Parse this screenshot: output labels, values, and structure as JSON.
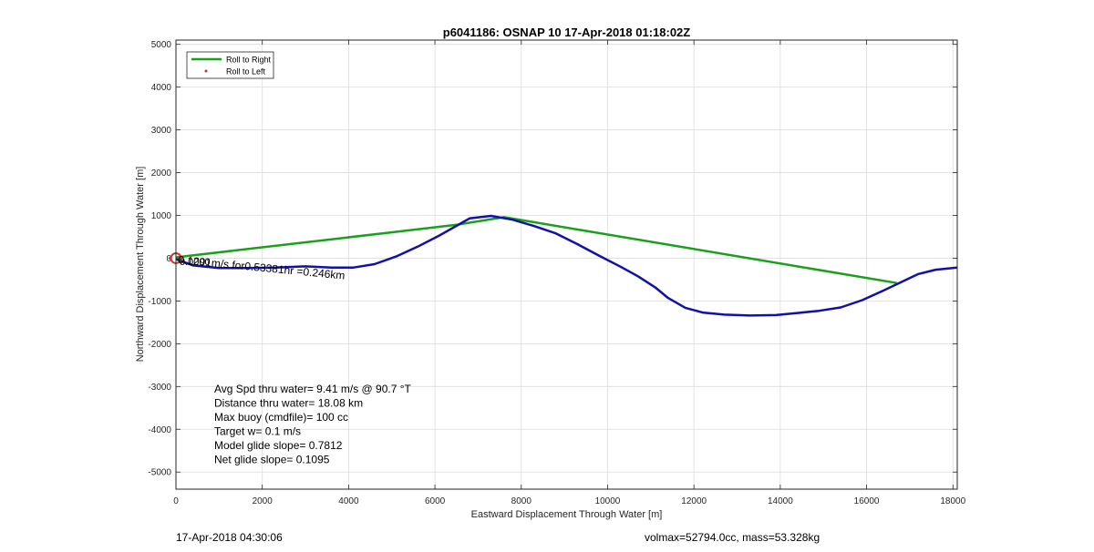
{
  "chart_data": {
    "type": "line",
    "title": "p6041186: OSNAP 10 17-Apr-2018 01:18:02Z",
    "xlabel": "Eastward Displacement Through Water [m]",
    "ylabel": "Northward Displacement Through Water [m]",
    "xlim": [
      0,
      18100
    ],
    "ylim": [
      -5400,
      5100
    ],
    "x_ticks": [
      0,
      2000,
      4000,
      6000,
      8000,
      10000,
      12000,
      14000,
      16000,
      18000
    ],
    "y_ticks": [
      5000,
      4000,
      3000,
      2000,
      1000,
      0,
      -1000,
      -2000,
      -3000,
      -4000,
      -5000
    ],
    "grid": true,
    "legend_position": "top-left",
    "legend": [
      {
        "label": "Roll to Right",
        "color": "#1aa01a",
        "style": "line"
      },
      {
        "label": "Roll to Left",
        "color": "#c0392b",
        "style": "dot"
      }
    ],
    "series": [
      {
        "name": "Roll to Right",
        "color": "#1aa01a",
        "points": [
          [
            0,
            20
          ],
          [
            6500,
            780
          ],
          [
            7600,
            960
          ],
          [
            16700,
            -580
          ]
        ]
      },
      {
        "color": "#1010aa",
        "points": [
          [
            0,
            -20
          ],
          [
            400,
            -170
          ],
          [
            1000,
            -230
          ],
          [
            1600,
            -230
          ],
          [
            2300,
            -220
          ],
          [
            3000,
            -190
          ],
          [
            3600,
            -220
          ],
          [
            4100,
            -220
          ],
          [
            4600,
            -140
          ],
          [
            5100,
            40
          ],
          [
            5600,
            270
          ],
          [
            6100,
            530
          ],
          [
            6400,
            700
          ],
          [
            6800,
            930
          ],
          [
            7300,
            990
          ],
          [
            7800,
            900
          ],
          [
            8300,
            750
          ],
          [
            8800,
            580
          ],
          [
            9300,
            330
          ],
          [
            9800,
            60
          ],
          [
            10300,
            -200
          ],
          [
            10700,
            -420
          ],
          [
            11100,
            -680
          ],
          [
            11400,
            -930
          ],
          [
            11800,
            -1160
          ],
          [
            12200,
            -1270
          ],
          [
            12700,
            -1320
          ],
          [
            13300,
            -1340
          ],
          [
            13900,
            -1330
          ],
          [
            14400,
            -1280
          ],
          [
            14900,
            -1230
          ],
          [
            15400,
            -1150
          ],
          [
            15900,
            -980
          ],
          [
            16400,
            -750
          ],
          [
            16800,
            -560
          ],
          [
            17200,
            -370
          ],
          [
            17600,
            -270
          ],
          [
            18100,
            -220
          ]
        ]
      }
    ],
    "marker": {
      "x": 0,
      "y": 0,
      "color": "#c0392b",
      "shape": "circle"
    },
    "annotations": {
      "velocity_label": "0.1291m/s for0.53381hr =0.246km",
      "point_label": "0.0000"
    },
    "stats": [
      "Avg Spd thru water=  9.41 m/s @  90.7 °T",
      "Distance thru water= 18.08 km",
      "Max buoy (cmdfile)= 100 cc",
      "Target w= 0.1 m/s",
      "Model glide slope= 0.7812",
      "Net glide slope= 0.1095"
    ]
  },
  "footer": {
    "left": "17-Apr-2018 04:30:06",
    "right": "volmax=52794.0cc, mass=53.328kg"
  }
}
